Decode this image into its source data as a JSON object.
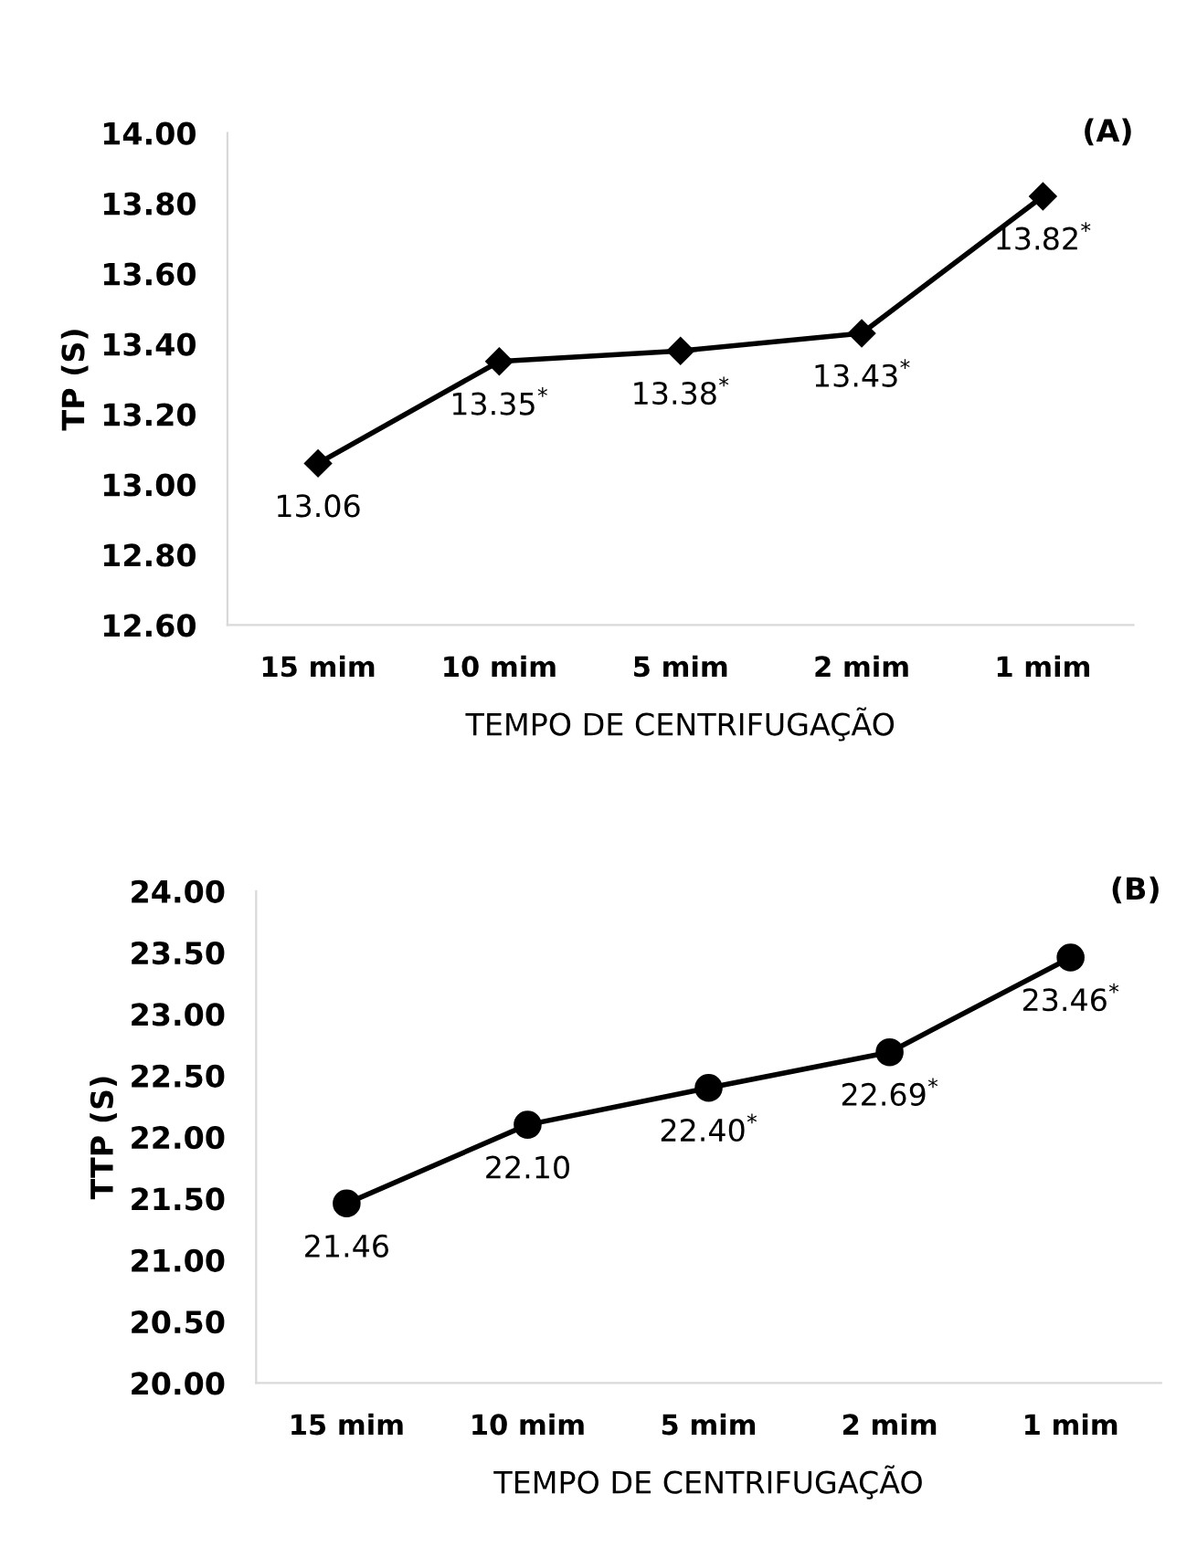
{
  "chart_data": [
    {
      "type": "line",
      "xlabel": "TEMPO DE CENTRIFUGAÇÃO",
      "ylabel": "TP (S)",
      "annotations": [
        "(A)"
      ],
      "categories": [
        "15 mim",
        "10 mim",
        "5 mim",
        "2 mim",
        "1 mim"
      ],
      "series": [
        {
          "color": "#000000",
          "values": [
            13.06,
            13.35,
            13.38,
            13.43,
            13.82
          ],
          "value_labels": [
            "13.06",
            "13.35$^{*}$",
            "13.38$^{*}$",
            "13.43$^{*}$",
            "13.82$^{*}$"
          ]
        }
      ],
      "ylim": [
        12.6,
        14.0
      ],
      "yticks": [
        {
          "value": 12.6,
          "label": "12.60"
        },
        {
          "value": 12.8,
          "label": "12.80"
        },
        {
          "value": 13.0,
          "label": "13.00"
        },
        {
          "value": 13.2,
          "label": "13.20"
        },
        {
          "value": 13.4,
          "label": "13.40"
        },
        {
          "value": 13.6,
          "label": "13.60"
        },
        {
          "value": 13.8,
          "label": "13.80"
        },
        {
          "value": 14.0,
          "label": "14.00"
        }
      ],
      "marker": "diamond",
      "line_style": "solid",
      "grid": false
    },
    {
      "type": "line",
      "xlabel": "TEMPO DE CENTRIFUGAÇÃO",
      "ylabel": "TTP (S)",
      "annotations": [
        "(B)"
      ],
      "categories": [
        "15 mim",
        "10 mim",
        "5 mim",
        "2 mim",
        "1 mim"
      ],
      "series": [
        {
          "color": "#000000",
          "values": [
            21.46,
            22.1,
            22.4,
            22.69,
            23.46
          ],
          "value_labels": [
            "21.46",
            "22.10",
            "22.40$^{*}$",
            "22.69$^{*}$",
            "23.46$^{*}$"
          ]
        }
      ],
      "ylim": [
        20.0,
        24.0
      ],
      "yticks": [
        {
          "value": 20.0,
          "label": "20.00"
        },
        {
          "value": 20.5,
          "label": "20.50"
        },
        {
          "value": 21.0,
          "label": "21.00"
        },
        {
          "value": 21.5,
          "label": "21.50"
        },
        {
          "value": 22.0,
          "label": "22.00"
        },
        {
          "value": 22.5,
          "label": "22.50"
        },
        {
          "value": 23.0,
          "label": "23.00"
        },
        {
          "value": 23.5,
          "label": "23.50"
        },
        {
          "value": 24.0,
          "label": "24.00"
        }
      ],
      "marker": "circle",
      "line_style": "solid",
      "grid": false
    }
  ]
}
